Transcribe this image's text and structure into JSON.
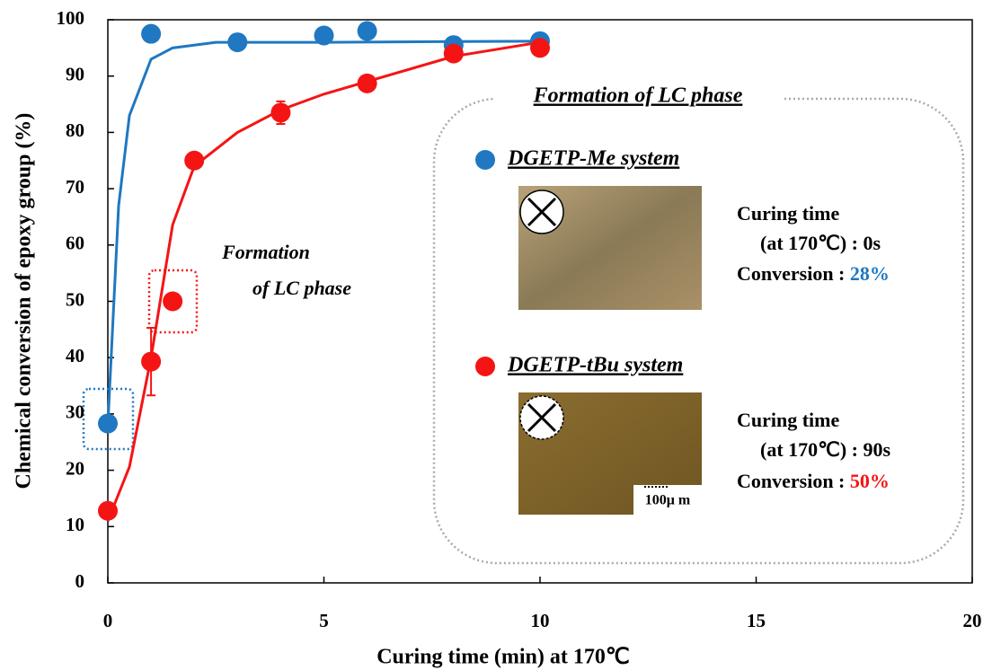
{
  "chart_data": {
    "type": "scatter",
    "xlabel": "Curing time (min) at 170℃",
    "ylabel": "Chemical conversion of epoxy group (%)",
    "xlim": [
      0,
      20
    ],
    "xticks": [
      0,
      5,
      10,
      15,
      20
    ],
    "ylim": [
      0,
      100
    ],
    "yticks": [
      0,
      10,
      20,
      30,
      40,
      50,
      60,
      70,
      80,
      90,
      100
    ],
    "series": [
      {
        "name": "DGETP-Me system",
        "color": "#1f78c1",
        "x": [
          0,
          1,
          3,
          5,
          6,
          8,
          10
        ],
        "values": [
          28.3,
          97.5,
          96,
          97.2,
          98,
          95.5,
          96.2
        ],
        "fit": {
          "x": [
            0,
            0.25,
            0.5,
            0.75,
            1,
            1.5,
            2.5,
            5,
            10
          ],
          "values": [
            28,
            67,
            83,
            88,
            93,
            95,
            96,
            96,
            96.2
          ]
        }
      },
      {
        "name": "DGETP-tBu system",
        "color": "#f51414",
        "x": [
          0,
          1,
          1.5,
          2,
          4,
          6,
          8,
          10
        ],
        "values": [
          12.8,
          39.3,
          50,
          75,
          83.5,
          88.7,
          94,
          95
        ],
        "errors": [
          null,
          6,
          null,
          null,
          2,
          null,
          null,
          null
        ],
        "fit": {
          "x": [
            0,
            0.5,
            1,
            1.5,
            2,
            3,
            4,
            5,
            8,
            10
          ],
          "values": [
            11,
            20.6,
            40,
            63.6,
            74,
            80,
            84,
            86.8,
            93.5,
            96
          ]
        }
      }
    ],
    "annotation": [
      "Formation",
      "of LC phase"
    ],
    "legend_title": "Formation of LC phase",
    "insets": [
      {
        "curing_label": "Curing time",
        "condition": "(at 170℃) : 0s",
        "conversion_label": "Conversion :",
        "conversion": "28%"
      },
      {
        "curing_label": "Curing time",
        "condition": "(at 170℃) : 90s",
        "conversion_label": "Conversion :",
        "conversion": "50%",
        "scale_label": "100μ m"
      }
    ]
  }
}
